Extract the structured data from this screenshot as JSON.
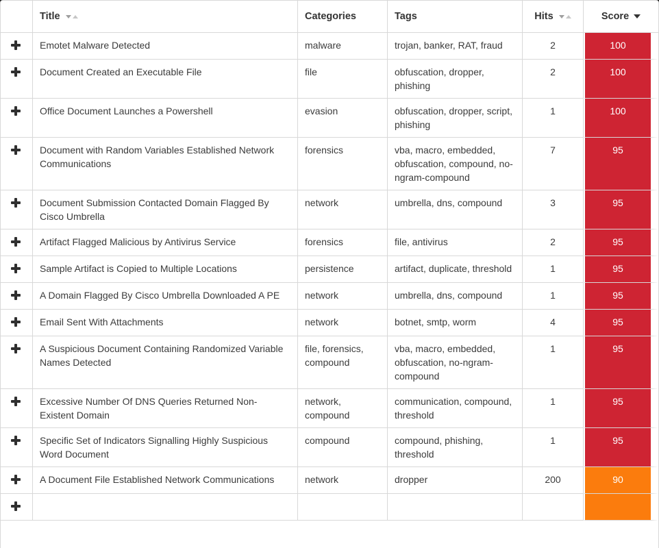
{
  "colors": {
    "score_high": "#ce2433",
    "score_medium": "#fb7c0d",
    "border": "#d8d8d8",
    "text": "#3b3b3b"
  },
  "table": {
    "headers": {
      "expand": "",
      "title": "Title",
      "categories": "Categories",
      "tags": "Tags",
      "hits": "Hits",
      "score": "Score"
    },
    "sort": {
      "title": "unsorted",
      "hits": "unsorted",
      "score": "descending"
    },
    "rows": [
      {
        "title": "Emotet Malware Detected",
        "categories": "malware",
        "tags": "trojan, banker, RAT, fraud",
        "hits": "2",
        "score": "100",
        "score_color": "#ce2433"
      },
      {
        "title": "Document Created an Executable File",
        "categories": "file",
        "tags": "obfuscation, dropper, phishing",
        "hits": "2",
        "score": "100",
        "score_color": "#ce2433"
      },
      {
        "title": "Office Document Launches a Powershell",
        "categories": "evasion",
        "tags": "obfuscation, dropper, script, phishing",
        "hits": "1",
        "score": "100",
        "score_color": "#ce2433"
      },
      {
        "title": "Document with Random Variables Established Network Communications",
        "categories": "forensics",
        "tags": "vba, macro, embedded, obfuscation, compound, no-ngram-compound",
        "hits": "7",
        "score": "95",
        "score_color": "#ce2433"
      },
      {
        "title": "Document Submission Contacted Domain Flagged By Cisco Umbrella",
        "categories": "network",
        "tags": "umbrella, dns, compound",
        "hits": "3",
        "score": "95",
        "score_color": "#ce2433"
      },
      {
        "title": "Artifact Flagged Malicious by Antivirus Service",
        "categories": "forensics",
        "tags": "file, antivirus",
        "hits": "2",
        "score": "95",
        "score_color": "#ce2433"
      },
      {
        "title": "Sample Artifact is Copied to Multiple Locations",
        "categories": "persistence",
        "tags": "artifact, duplicate, threshold",
        "hits": "1",
        "score": "95",
        "score_color": "#ce2433"
      },
      {
        "title": "A Domain Flagged By Cisco Umbrella Downloaded A PE",
        "categories": "network",
        "tags": "umbrella, dns, compound",
        "hits": "1",
        "score": "95",
        "score_color": "#ce2433"
      },
      {
        "title": "Email Sent With Attachments",
        "categories": "network",
        "tags": "botnet, smtp, worm",
        "hits": "4",
        "score": "95",
        "score_color": "#ce2433"
      },
      {
        "title": "A Suspicious Document Containing Randomized Variable Names Detected",
        "categories": "file, forensics, compound",
        "tags": "vba, macro, embedded, obfuscation, no-ngram-compound",
        "hits": "1",
        "score": "95",
        "score_color": "#ce2433"
      },
      {
        "title": "Excessive Number Of DNS Queries Returned Non-Existent Domain",
        "categories": "network, compound",
        "tags": "communication, compound, threshold",
        "hits": "1",
        "score": "95",
        "score_color": "#ce2433"
      },
      {
        "title": "Specific Set of Indicators Signalling Highly Suspicious Word Document",
        "categories": "compound",
        "tags": "compound, phishing, threshold",
        "hits": "1",
        "score": "95",
        "score_color": "#ce2433"
      },
      {
        "title": "A Document File Established Network Communications",
        "categories": "network",
        "tags": "dropper",
        "hits": "200",
        "score": "90",
        "score_color": "#fb7c0d"
      },
      {
        "title": "",
        "categories": "",
        "tags": "",
        "hits": "",
        "score": "",
        "score_color": "#fb7c0d"
      }
    ]
  }
}
